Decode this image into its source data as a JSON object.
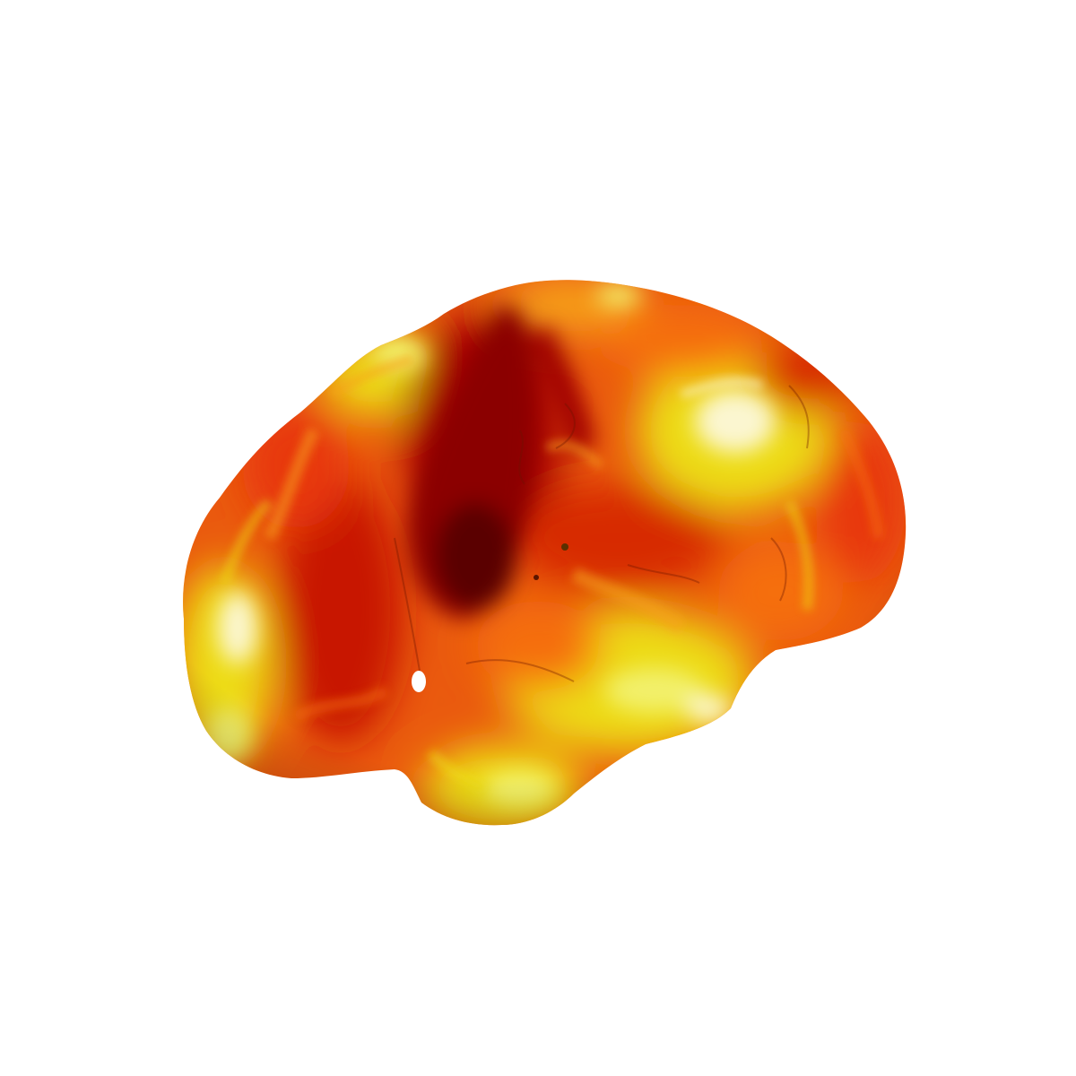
{
  "scene": {
    "subject": "brain-surface-render",
    "background_color": "#ffffff",
    "colormap": [
      "#5a0000",
      "#8b0000",
      "#c81400",
      "#e8380a",
      "#f56e0c",
      "#f7a21c",
      "#eddc18",
      "#f2f06a",
      "#fbf6d0"
    ]
  }
}
